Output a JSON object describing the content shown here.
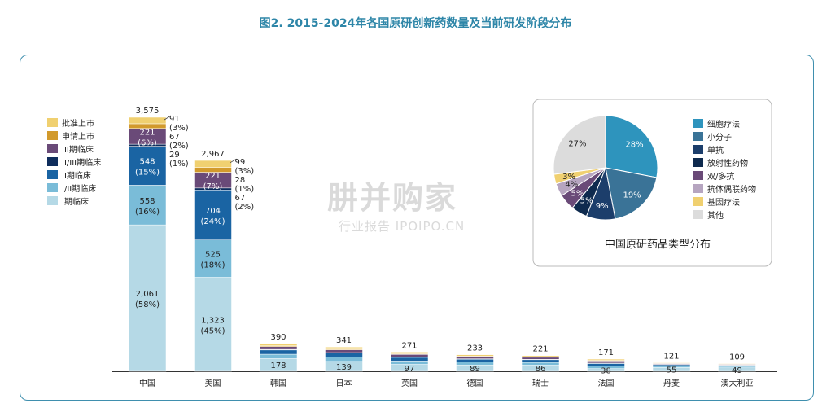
{
  "title": "图2. 2015-2024年各国原研创新药数量及当前研发阶段分布",
  "watermark": {
    "brand": "肼并购家",
    "sub": "行业报告 IPOIPO.CN"
  },
  "chart_data": [
    {
      "type": "bar",
      "stacked": true,
      "categories": [
        "中国",
        "美国",
        "韩国",
        "日本",
        "英国",
        "德国",
        "瑞士",
        "法国",
        "丹麦",
        "澳大利亚"
      ],
      "totals": [
        3575,
        2967,
        390,
        341,
        271,
        233,
        221,
        171,
        121,
        109
      ],
      "total_labels": [
        "3,575",
        "2,967",
        "390",
        "341",
        "271",
        "233",
        "221",
        "171",
        "121",
        "109"
      ],
      "series": [
        {
          "name": "I期临床",
          "color": "#b5d9e6",
          "values": [
            2061,
            1323,
            178,
            139,
            97,
            89,
            86,
            38,
            55,
            49
          ]
        },
        {
          "name": "I/II期临床",
          "color": "#7abcd8",
          "values": [
            558,
            525,
            62,
            60,
            48,
            42,
            40,
            38,
            22,
            20
          ]
        },
        {
          "name": "II期临床",
          "color": "#1a64a3",
          "values": [
            548,
            704,
            60,
            58,
            52,
            40,
            38,
            35,
            18,
            16
          ]
        },
        {
          "name": "II/III期临床",
          "color": "#0f2d5c",
          "values": [
            29,
            28,
            8,
            6,
            5,
            5,
            5,
            4,
            3,
            3
          ]
        },
        {
          "name": "III期临床",
          "color": "#6a4a78",
          "values": [
            221,
            221,
            40,
            38,
            35,
            30,
            28,
            30,
            12,
            11
          ]
        },
        {
          "name": "申请上市",
          "color": "#d29a2c",
          "values": [
            67,
            67,
            10,
            10,
            8,
            8,
            8,
            8,
            4,
            4
          ]
        },
        {
          "name": "批准上市",
          "color": "#f0d070",
          "values": [
            91,
            99,
            32,
            30,
            26,
            19,
            16,
            18,
            7,
            6
          ]
        }
      ],
      "segment_labels": {
        "中国": {
          "I期临床": [
            "2,061",
            "(58%)"
          ],
          "I/II期临床": [
            "558",
            "(16%)"
          ],
          "II期临床": [
            "548",
            "(15%)"
          ],
          "III期临床": [
            "221",
            "(6%)"
          ]
        },
        "美国": {
          "I期临床": [
            "1,323",
            "(45%)"
          ],
          "I/II期临床": [
            "525",
            "(18%)"
          ],
          "II期临床": [
            "704",
            "(24%)"
          ],
          "III期临床": [
            "221",
            "(7%)"
          ]
        }
      },
      "small_bar_labels": [
        "178",
        "139",
        "97",
        "89",
        "86",
        "38",
        "55",
        "49"
      ],
      "callouts": {
        "中国": [
          "91",
          "(3%)",
          "67",
          "(2%)",
          "29",
          "(1%)"
        ],
        "美国": [
          "99",
          "(3%)",
          "28",
          "(1%)",
          "67",
          "(2%)"
        ]
      },
      "legend": [
        "批准上市",
        "申请上市",
        "III期临床",
        "II/III期临床",
        "II期临床",
        "I/II期临床",
        "I期临床"
      ],
      "legend_placement": "top-left",
      "grid": false
    },
    {
      "type": "pie",
      "title": "中国原研药品类型分布",
      "slices": [
        {
          "label": "细胞疗法",
          "value": 28,
          "text": "28%",
          "color": "#2e94bd"
        },
        {
          "label": "小分子",
          "value": 19,
          "text": "19%",
          "color": "#3a7397"
        },
        {
          "label": "单抗",
          "value": 9,
          "text": "9%",
          "color": "#1c3e6b"
        },
        {
          "label": "放射性药物",
          "value": 5,
          "text": "5%",
          "color": "#0e2a4e"
        },
        {
          "label": "双/多抗",
          "value": 5,
          "text": "5%",
          "color": "#6a4a78"
        },
        {
          "label": "抗体偶联药物",
          "value": 4,
          "text": "4%",
          "color": "#b6a5c0"
        },
        {
          "label": "基因疗法",
          "value": 3,
          "text": "3%",
          "color": "#f0d070"
        },
        {
          "label": "其他",
          "value": 27,
          "text": "27%",
          "color": "#dcdcdc"
        }
      ],
      "legend_placement": "right"
    }
  ]
}
